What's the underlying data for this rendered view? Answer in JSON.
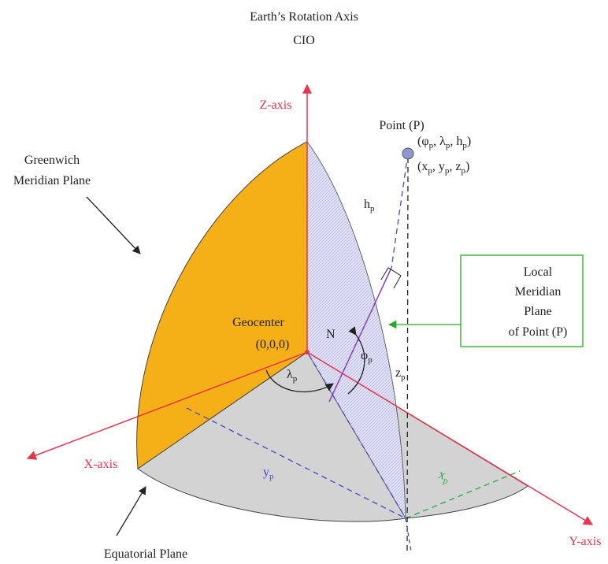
{
  "title": {
    "lines": [
      "Earth’s Rotation Axis",
      "CIO"
    ]
  },
  "axes": {
    "z": "Z-axis",
    "x": "X-axis",
    "y": "Y-axis"
  },
  "labels": {
    "point": "Point (P)",
    "geodetic": [
      "(φ",
      "p",
      ", λ",
      "p",
      ", h",
      "p",
      ")"
    ],
    "cartesian": [
      "(x",
      "p",
      ", y",
      "p",
      ", z",
      "p",
      ")"
    ],
    "height": [
      "h",
      "p"
    ],
    "normal": "N",
    "geocenter": "Geocenter",
    "origin": "(0,0,0)",
    "longitude": [
      "λ",
      "p"
    ],
    "latitude": [
      "φ",
      "p"
    ],
    "z_coord": [
      "z",
      "p"
    ],
    "y_coord": [
      "y",
      "p"
    ],
    "x_coord": [
      "x",
      "p"
    ],
    "greenwich": [
      "Greenwich",
      "Meridian Plane"
    ],
    "equatorial": "Equatorial Plane",
    "local_meridian": [
      "Local",
      "Meridian",
      "Plane",
      "of Point (P)"
    ]
  }
}
